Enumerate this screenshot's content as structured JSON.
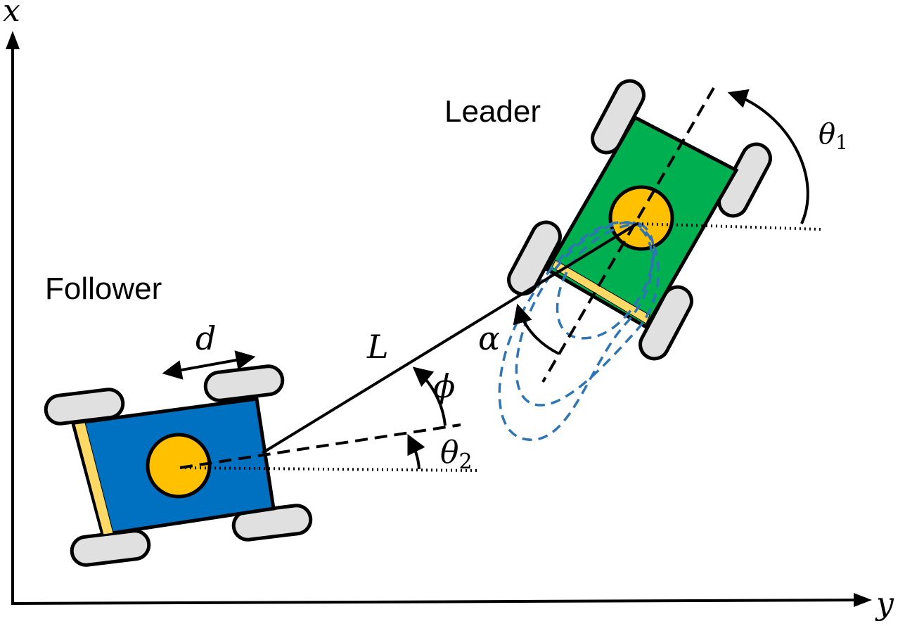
{
  "axes": {
    "vertical_label": "x",
    "horizontal_label": "y"
  },
  "robots": {
    "leader": {
      "label": "Leader",
      "body_color": "#00b050",
      "center_color": "#ffc000",
      "edge_strip_color": "#ffd966"
    },
    "follower": {
      "label": "Follower",
      "body_color": "#0070c0",
      "center_color": "#ffc000",
      "edge_strip_color": "#ffd966"
    }
  },
  "wheel_color": "#e0e0e0",
  "trajectory_color": "#2e75b6",
  "symbols": {
    "separation": "L",
    "wheel_spacing": "d",
    "theta1_base": "θ",
    "theta1_sub": "1",
    "theta2_base": "θ",
    "theta2_sub": "2",
    "phi": "ϕ",
    "alpha": "α"
  }
}
